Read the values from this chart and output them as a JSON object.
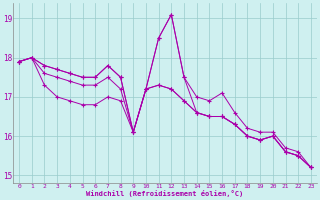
{
  "background_color": "#cff0f0",
  "line_color": "#aa00aa",
  "grid_color": "#99cccc",
  "xlabel": "Windchill (Refroidissement éolien,°C)",
  "xlabel_color": "#aa00aa",
  "tick_color": "#aa00aa",
  "yticks": [
    15,
    16,
    17,
    18,
    19
  ],
  "xticks": [
    0,
    1,
    2,
    3,
    4,
    5,
    6,
    7,
    8,
    9,
    10,
    11,
    12,
    13,
    14,
    15,
    16,
    17,
    18,
    19,
    20,
    21,
    22,
    23
  ],
  "xlim": [
    -0.5,
    23.5
  ],
  "ylim": [
    14.8,
    19.4
  ],
  "series": [
    [
      17.9,
      18.0,
      17.8,
      17.7,
      17.6,
      17.5,
      17.5,
      17.8,
      17.5,
      16.1,
      17.2,
      18.5,
      19.1,
      17.5,
      17.0,
      16.9,
      17.1,
      16.6,
      16.2,
      16.1,
      16.1,
      15.7,
      15.6,
      15.2
    ],
    [
      17.9,
      18.0,
      17.8,
      17.7,
      17.6,
      17.5,
      17.5,
      17.8,
      17.5,
      16.1,
      17.2,
      18.5,
      19.1,
      17.5,
      16.6,
      16.5,
      16.5,
      16.3,
      16.0,
      15.9,
      16.0,
      15.6,
      15.5,
      15.2
    ],
    [
      17.9,
      18.0,
      17.6,
      17.5,
      17.4,
      17.3,
      17.3,
      17.5,
      17.2,
      16.1,
      17.2,
      17.3,
      17.2,
      16.9,
      16.6,
      16.5,
      16.5,
      16.3,
      16.0,
      15.9,
      16.0,
      15.6,
      15.5,
      15.2
    ],
    [
      17.9,
      18.0,
      17.3,
      17.0,
      16.9,
      16.8,
      16.8,
      17.0,
      16.9,
      16.1,
      17.2,
      17.3,
      17.2,
      16.9,
      16.6,
      16.5,
      16.5,
      16.3,
      16.0,
      15.9,
      16.0,
      15.6,
      15.5,
      15.2
    ]
  ]
}
